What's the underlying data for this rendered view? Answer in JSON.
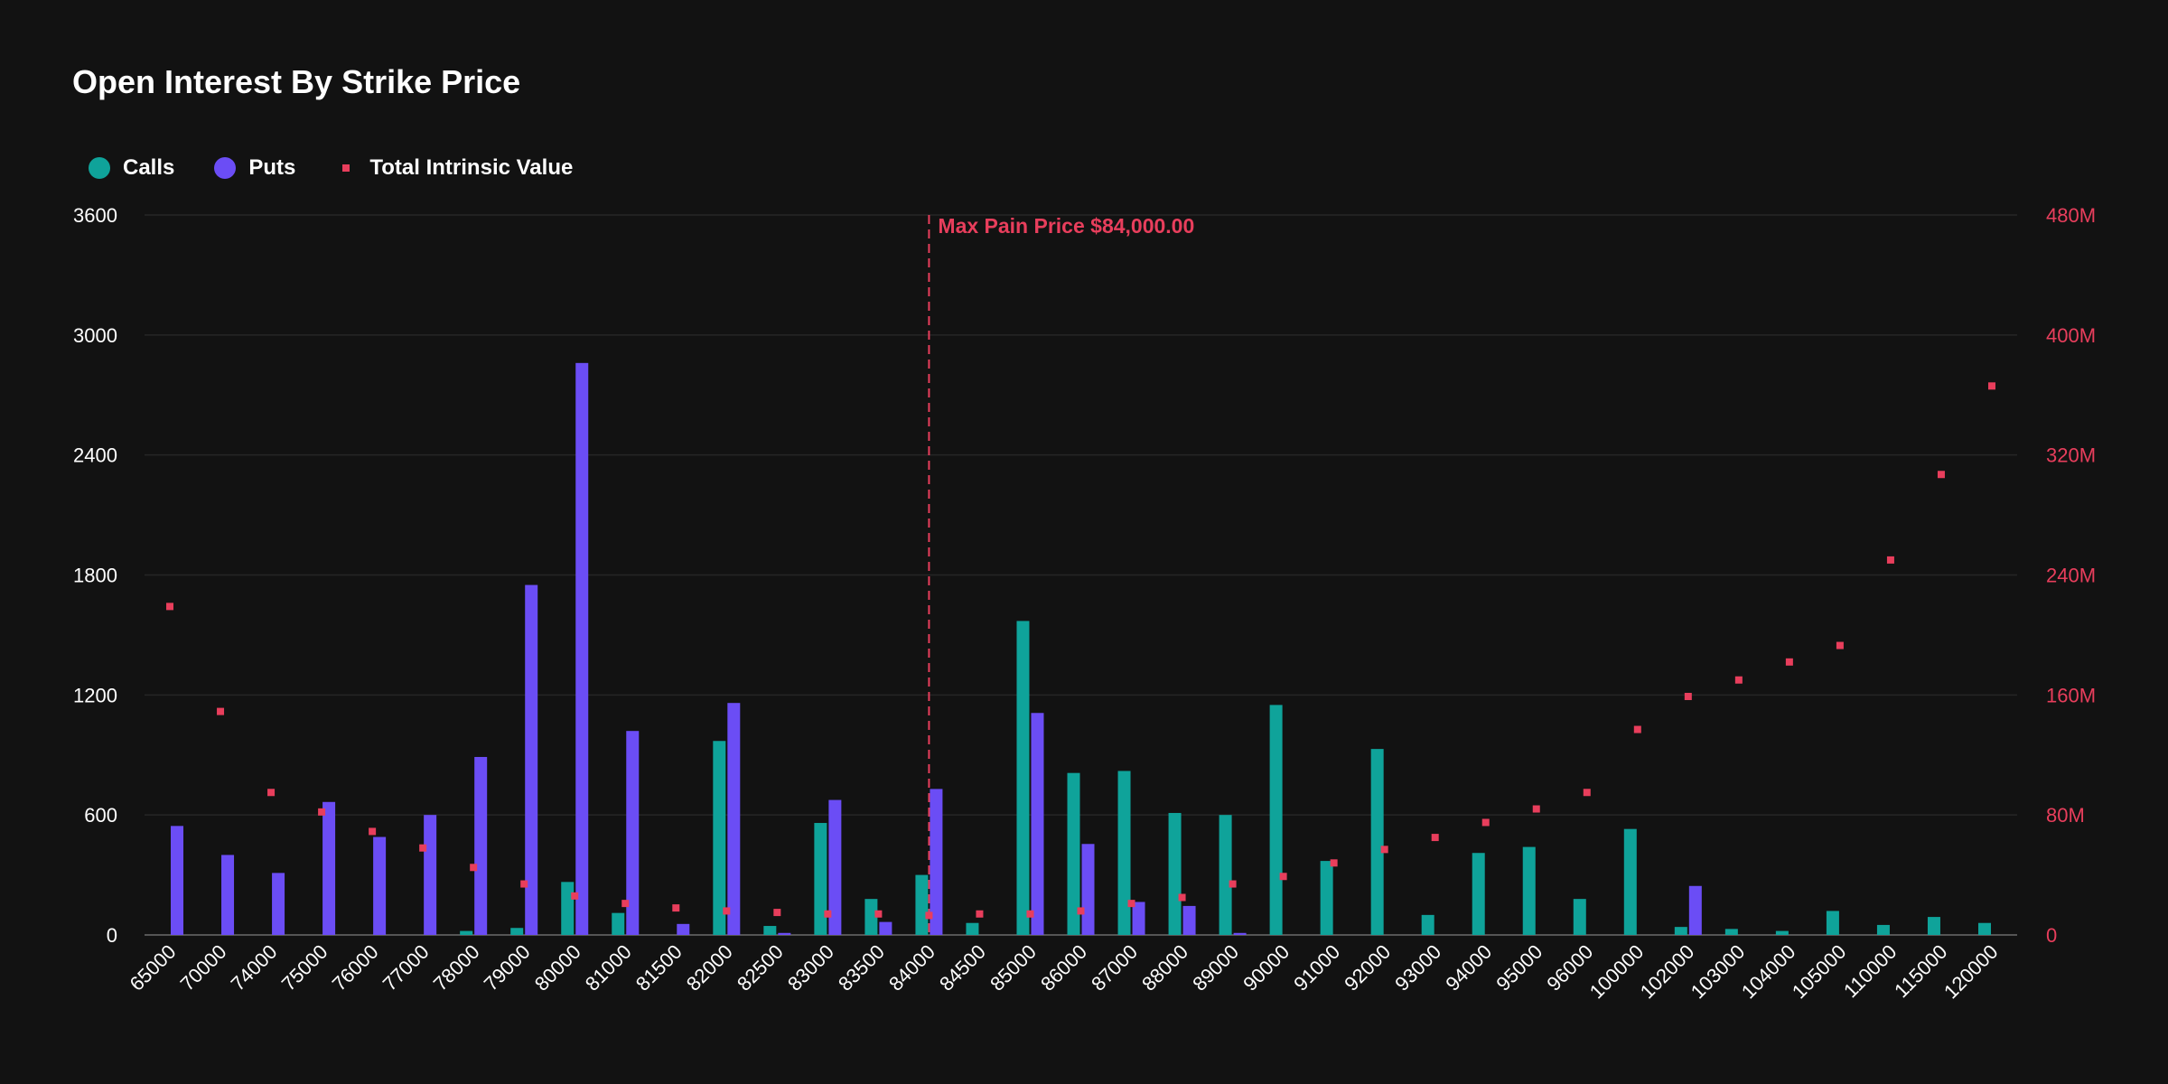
{
  "chart_data": {
    "type": "bar",
    "title": "Open Interest By Strike Price",
    "categories": [
      "65000",
      "70000",
      "74000",
      "75000",
      "76000",
      "77000",
      "78000",
      "79000",
      "80000",
      "81000",
      "81500",
      "82000",
      "82500",
      "83000",
      "83500",
      "84000",
      "84500",
      "85000",
      "86000",
      "87000",
      "88000",
      "89000",
      "90000",
      "91000",
      "92000",
      "93000",
      "94000",
      "95000",
      "96000",
      "100000",
      "102000",
      "103000",
      "104000",
      "105000",
      "110000",
      "115000",
      "120000"
    ],
    "series": [
      {
        "name": "Calls",
        "kind": "bar",
        "axis": "left",
        "color": "#0fa39a",
        "values": [
          0,
          0,
          0,
          0,
          0,
          0,
          20,
          35,
          265,
          110,
          0,
          970,
          45,
          560,
          180,
          300,
          60,
          1570,
          810,
          820,
          610,
          600,
          1150,
          370,
          930,
          100,
          410,
          440,
          180,
          530,
          40,
          30,
          20,
          120,
          50,
          90,
          60
        ]
      },
      {
        "name": "Puts",
        "kind": "bar",
        "axis": "left",
        "color": "#6b4df5",
        "values": [
          545,
          400,
          310,
          665,
          490,
          600,
          890,
          1750,
          2860,
          1020,
          55,
          1160,
          10,
          675,
          65,
          730,
          0,
          1110,
          455,
          165,
          145,
          10,
          0,
          0,
          0,
          0,
          0,
          0,
          0,
          0,
          245,
          0,
          0,
          0,
          0,
          0,
          0
        ]
      },
      {
        "name": "Total Intrinsic Value",
        "kind": "scatter",
        "axis": "right",
        "color": "#e83e5c",
        "values": [
          219000000,
          149000000,
          95000000,
          82000000,
          69000000,
          58000000,
          45000000,
          34000000,
          26000000,
          21000000,
          18000000,
          16000000,
          15000000,
          14000000,
          14000000,
          13000000,
          14000000,
          14000000,
          16000000,
          21000000,
          25000000,
          34000000,
          39000000,
          48000000,
          57000000,
          65000000,
          75000000,
          84000000,
          95000000,
          137000000,
          159000000,
          170000000,
          182000000,
          193000000,
          250000000,
          307000000,
          366000000
        ]
      }
    ],
    "yleft": {
      "ylim": [
        0,
        3600
      ],
      "ticks": [
        "0",
        "600",
        "1200",
        "1800",
        "2400",
        "3000",
        "3600"
      ]
    },
    "yright": {
      "ylim": [
        0,
        480000000
      ],
      "ticks": [
        "0",
        "80M",
        "160M",
        "240M",
        "320M",
        "400M",
        "480M"
      ]
    },
    "annotation": {
      "category": "84000",
      "label": "Max Pain Price $84,000.00",
      "color": "#e83e5c"
    },
    "grid": true,
    "legend_position": "top-left"
  },
  "legend": [
    {
      "label": "Calls",
      "color": "#0fa39a",
      "marker": "circle"
    },
    {
      "label": "Puts",
      "color": "#6b4df5",
      "marker": "circle"
    },
    {
      "label": "Total Intrinsic Value",
      "color": "#e83e5c",
      "marker": "square"
    }
  ]
}
